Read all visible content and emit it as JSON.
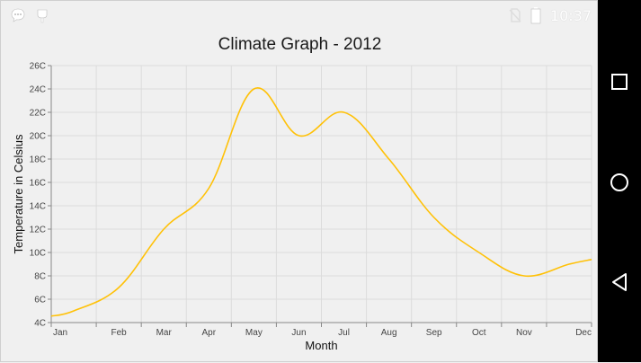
{
  "status_bar": {
    "time": "10:37",
    "left_icons": [
      "chat-bubble-icon",
      "android-debug-icon"
    ],
    "right_icons": [
      "no-sim-icon",
      "battery-icon"
    ]
  },
  "navigation": {
    "buttons": [
      "recents-button",
      "home-button",
      "back-button"
    ]
  },
  "chart_data": {
    "type": "line",
    "title": "Climate Graph - 2012",
    "xlabel": "Month",
    "ylabel": "Temperature in Celsius",
    "categories": [
      "Jan",
      "Feb",
      "Mar",
      "Apr",
      "May",
      "Jun",
      "Jul",
      "Aug",
      "Sep",
      "Oct",
      "Nov",
      "Dec"
    ],
    "series": [
      {
        "values": [
          5,
          7,
          12,
          15.5,
          24,
          20,
          22,
          18,
          13,
          10,
          8,
          9
        ],
        "color": "#FFC107"
      }
    ],
    "ylim": [
      4,
      26
    ],
    "y_ticks": [
      "4C",
      "6C",
      "8C",
      "10C",
      "12C",
      "14C",
      "16C",
      "18C",
      "20C",
      "22C",
      "24C",
      "26C"
    ],
    "grid": true,
    "smooth": true
  },
  "colors": {
    "line": "#FFC107",
    "grid": "#dcdcdc",
    "background": "#f0f0f0",
    "nav_background": "#000000"
  }
}
